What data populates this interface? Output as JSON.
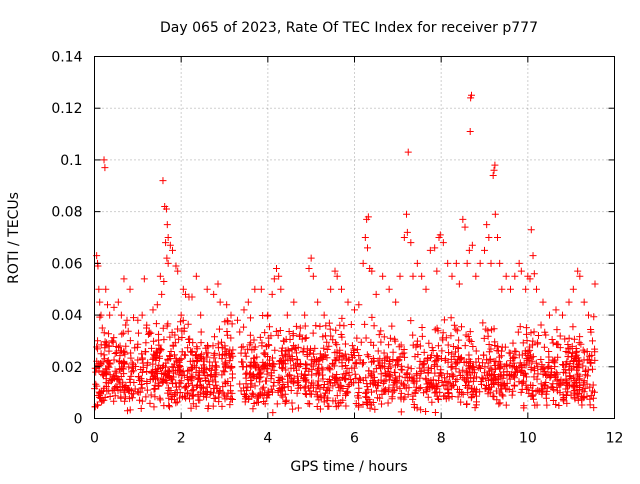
{
  "chart_data": {
    "type": "scatter",
    "title": "Day 065 of 2023, Rate Of TEC Index for receiver p777",
    "xlabel": "GPS time / hours",
    "ylabel": "ROTI / TECUs",
    "xlim": [
      0,
      12
    ],
    "ylim": [
      0,
      0.14
    ],
    "x_ticks": [
      {
        "value": 0,
        "label": "0"
      },
      {
        "value": 2,
        "label": "2"
      },
      {
        "value": 4,
        "label": "4"
      },
      {
        "value": 6,
        "label": "6"
      },
      {
        "value": 8,
        "label": "8"
      },
      {
        "value": 10,
        "label": "10"
      },
      {
        "value": 12,
        "label": "12"
      }
    ],
    "y_ticks": [
      {
        "value": 0,
        "label": "0"
      },
      {
        "value": 0.02,
        "label": "0.02"
      },
      {
        "value": 0.04,
        "label": "0.04"
      },
      {
        "value": 0.06,
        "label": "0.06"
      },
      {
        "value": 0.08,
        "label": "0.08"
      },
      {
        "value": 0.1,
        "label": "0.1"
      },
      {
        "value": 0.12,
        "label": "0.12"
      },
      {
        "value": 0.14,
        "label": "0.14"
      }
    ],
    "grid": true,
    "marker": "+",
    "color": "#ff0000",
    "series": [
      {
        "name": "ROTI",
        "points": [
          [
            0.05,
            0.063
          ],
          [
            0.07,
            0.06
          ],
          [
            0.08,
            0.059
          ],
          [
            0.1,
            0.05
          ],
          [
            0.12,
            0.045
          ],
          [
            0.15,
            0.04
          ],
          [
            0.18,
            0.035
          ],
          [
            0.22,
            0.1
          ],
          [
            0.24,
            0.097
          ],
          [
            0.26,
            0.05
          ],
          [
            0.3,
            0.044
          ],
          [
            0.35,
            0.04
          ],
          [
            0.4,
            0.03
          ],
          [
            0.45,
            0.043
          ],
          [
            0.55,
            0.045
          ],
          [
            0.62,
            0.04
          ],
          [
            0.68,
            0.054
          ],
          [
            0.75,
            0.038
          ],
          [
            0.82,
            0.05
          ],
          [
            0.9,
            0.039
          ],
          [
            1.0,
            0.038
          ],
          [
            1.1,
            0.04
          ],
          [
            1.15,
            0.054
          ],
          [
            1.2,
            0.035
          ],
          [
            1.3,
            0.033
          ],
          [
            1.35,
            0.042
          ],
          [
            1.45,
            0.044
          ],
          [
            1.52,
            0.055
          ],
          [
            1.55,
            0.048
          ],
          [
            1.6,
            0.053
          ],
          [
            1.58,
            0.092
          ],
          [
            1.62,
            0.082
          ],
          [
            1.66,
            0.081
          ],
          [
            1.68,
            0.075
          ],
          [
            1.7,
            0.07
          ],
          [
            1.64,
            0.068
          ],
          [
            1.67,
            0.062
          ],
          [
            1.7,
            0.06
          ],
          [
            1.75,
            0.067
          ],
          [
            1.8,
            0.065
          ],
          [
            1.88,
            0.059
          ],
          [
            1.92,
            0.057
          ],
          [
            2.0,
            0.04
          ],
          [
            2.05,
            0.05
          ],
          [
            2.1,
            0.048
          ],
          [
            2.18,
            0.047
          ],
          [
            2.25,
            0.047
          ],
          [
            2.35,
            0.055
          ],
          [
            2.45,
            0.04
          ],
          [
            2.6,
            0.05
          ],
          [
            2.75,
            0.048
          ],
          [
            2.85,
            0.052
          ],
          [
            2.9,
            0.045
          ],
          [
            3.05,
            0.044
          ],
          [
            3.15,
            0.04
          ],
          [
            3.3,
            0.038
          ],
          [
            3.45,
            0.042
          ],
          [
            3.55,
            0.045
          ],
          [
            3.7,
            0.05
          ],
          [
            3.85,
            0.05
          ],
          [
            4.0,
            0.04
          ],
          [
            4.1,
            0.048
          ],
          [
            4.15,
            0.054
          ],
          [
            4.2,
            0.058
          ],
          [
            4.25,
            0.055
          ],
          [
            4.3,
            0.05
          ],
          [
            4.45,
            0.04
          ],
          [
            4.6,
            0.045
          ],
          [
            4.75,
            0.035
          ],
          [
            4.85,
            0.04
          ],
          [
            4.95,
            0.058
          ],
          [
            5.0,
            0.062
          ],
          [
            5.05,
            0.055
          ],
          [
            5.15,
            0.045
          ],
          [
            5.3,
            0.04
          ],
          [
            5.45,
            0.05
          ],
          [
            5.55,
            0.057
          ],
          [
            5.6,
            0.055
          ],
          [
            5.7,
            0.05
          ],
          [
            5.85,
            0.045
          ],
          [
            6.0,
            0.042
          ],
          [
            6.1,
            0.044
          ],
          [
            6.2,
            0.06
          ],
          [
            6.25,
            0.07
          ],
          [
            6.28,
            0.077
          ],
          [
            6.32,
            0.078
          ],
          [
            6.3,
            0.066
          ],
          [
            6.35,
            0.058
          ],
          [
            6.4,
            0.057
          ],
          [
            6.5,
            0.048
          ],
          [
            6.65,
            0.055
          ],
          [
            6.8,
            0.05
          ],
          [
            6.95,
            0.045
          ],
          [
            7.05,
            0.055
          ],
          [
            7.15,
            0.07
          ],
          [
            7.2,
            0.079
          ],
          [
            7.22,
            0.072
          ],
          [
            7.24,
            0.103
          ],
          [
            7.3,
            0.068
          ],
          [
            7.35,
            0.055
          ],
          [
            7.45,
            0.06
          ],
          [
            7.55,
            0.055
          ],
          [
            7.65,
            0.05
          ],
          [
            7.75,
            0.065
          ],
          [
            7.85,
            0.066
          ],
          [
            7.9,
            0.057
          ],
          [
            7.95,
            0.07
          ],
          [
            7.98,
            0.071
          ],
          [
            8.05,
            0.068
          ],
          [
            8.15,
            0.06
          ],
          [
            8.25,
            0.055
          ],
          [
            8.35,
            0.06
          ],
          [
            8.42,
            0.052
          ],
          [
            8.5,
            0.077
          ],
          [
            8.55,
            0.074
          ],
          [
            8.6,
            0.06
          ],
          [
            8.65,
            0.065
          ],
          [
            8.68,
            0.124
          ],
          [
            8.7,
            0.125
          ],
          [
            8.67,
            0.111
          ],
          [
            8.72,
            0.067
          ],
          [
            8.8,
            0.055
          ],
          [
            8.9,
            0.06
          ],
          [
            9.0,
            0.065
          ],
          [
            9.05,
            0.075
          ],
          [
            9.1,
            0.07
          ],
          [
            9.15,
            0.06
          ],
          [
            9.2,
            0.094
          ],
          [
            9.22,
            0.096
          ],
          [
            9.24,
            0.098
          ],
          [
            9.25,
            0.079
          ],
          [
            9.3,
            0.07
          ],
          [
            9.35,
            0.06
          ],
          [
            9.4,
            0.05
          ],
          [
            9.5,
            0.055
          ],
          [
            9.6,
            0.05
          ],
          [
            9.7,
            0.055
          ],
          [
            9.8,
            0.06
          ],
          [
            9.85,
            0.057
          ],
          [
            9.95,
            0.05
          ],
          [
            10.0,
            0.055
          ],
          [
            10.05,
            0.054
          ],
          [
            10.08,
            0.073
          ],
          [
            10.12,
            0.063
          ],
          [
            10.15,
            0.056
          ],
          [
            10.2,
            0.05
          ],
          [
            10.35,
            0.045
          ],
          [
            10.5,
            0.04
          ],
          [
            10.65,
            0.042
          ],
          [
            10.8,
            0.04
          ],
          [
            10.95,
            0.045
          ],
          [
            11.05,
            0.05
          ],
          [
            11.15,
            0.057
          ],
          [
            11.2,
            0.055
          ],
          [
            11.3,
            0.045
          ],
          [
            11.4,
            0.04
          ],
          [
            11.55,
            0.052
          ]
        ]
      }
    ],
    "bulk_band": {
      "description": "dense cloud of ROTI samples from 0 to 11.55 h",
      "samples": 1900,
      "mean": 0.018,
      "min": 0.002,
      "max": 0.04,
      "gap_hours": [
        [
          3.22,
          3.35
        ]
      ]
    }
  }
}
